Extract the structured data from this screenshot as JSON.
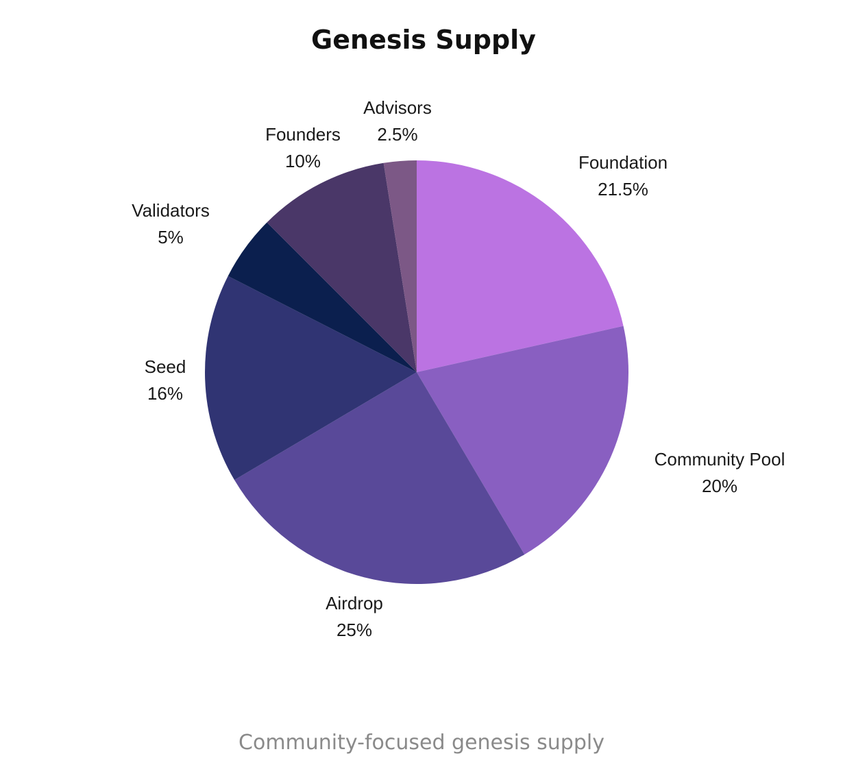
{
  "chart_data": {
    "type": "pie",
    "title": "Genesis Supply",
    "slices": [
      {
        "label": "Foundation",
        "value": 21.5,
        "value_label": "21.5%",
        "color": "#bb73e2"
      },
      {
        "label": "Community Pool",
        "value": 20,
        "value_label": "20%",
        "color": "#895fc1"
      },
      {
        "label": "Airdrop",
        "value": 25,
        "value_label": "25%",
        "color": "#594999"
      },
      {
        "label": "Seed",
        "value": 16,
        "value_label": "16%",
        "color": "#303473"
      },
      {
        "label": "Validators",
        "value": 5,
        "value_label": "5%",
        "color": "#0b1f4e"
      },
      {
        "label": "Founders",
        "value": 10,
        "value_label": "10%",
        "color": "#4a3768"
      },
      {
        "label": "Advisors",
        "value": 2.5,
        "value_label": "2.5%",
        "color": "#7c5886"
      }
    ],
    "start": "12 o'clock",
    "direction": "clockwise",
    "legend": "none"
  },
  "caption": "Community-focused genesis supply"
}
